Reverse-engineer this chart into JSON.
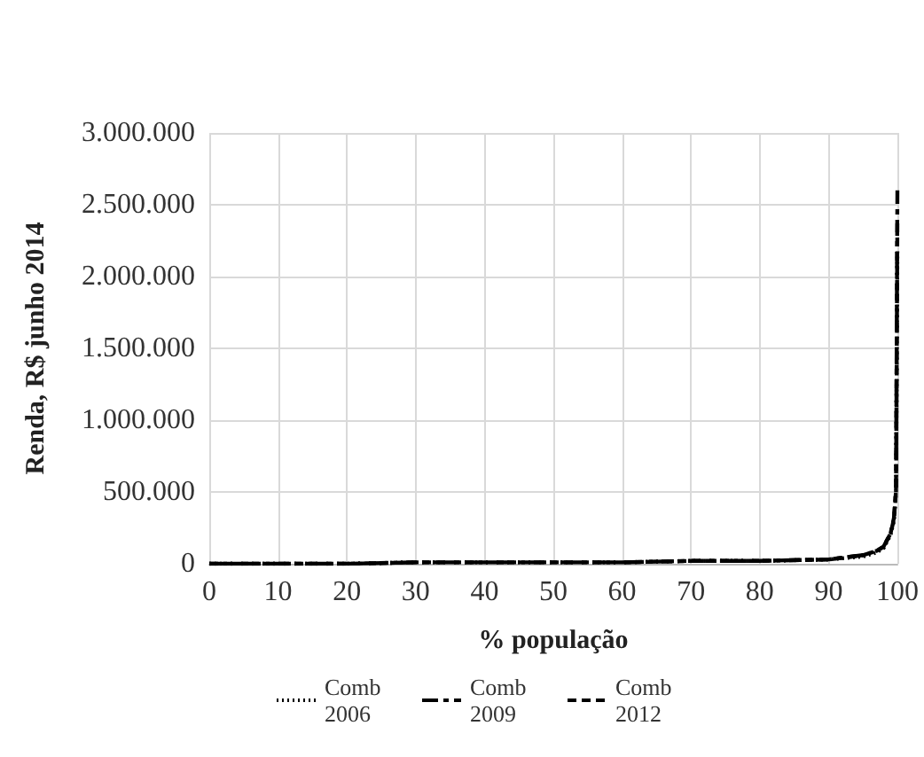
{
  "chart_data": {
    "type": "line",
    "xlabel": "% população",
    "ylabel": "Renda, R$ junho 2014",
    "xlim": [
      0,
      100
    ],
    "xticks": [
      0,
      10,
      20,
      30,
      40,
      50,
      60,
      70,
      80,
      90,
      100
    ],
    "ylim": [
      0,
      3000000
    ],
    "yticks": [
      {
        "value": 0,
        "label": "0"
      },
      {
        "value": 500000,
        "label": "500.000"
      },
      {
        "value": 1000000,
        "label": "1.000.000"
      },
      {
        "value": 1500000,
        "label": "1.500.000"
      },
      {
        "value": 2000000,
        "label": "2.000.000"
      },
      {
        "value": 2500000,
        "label": "2.500.000"
      },
      {
        "value": 3000000,
        "label": "3.000.000"
      }
    ],
    "grid": true,
    "legend": "bottom",
    "marker": "none",
    "series": [
      {
        "name": "Comb 2006",
        "color": "#000000",
        "line_style": "dotted",
        "x": [
          0,
          10,
          20,
          30,
          40,
          50,
          60,
          70,
          80,
          90,
          95,
          97,
          98,
          99,
          99.5,
          99.8,
          100
        ],
        "values": [
          0,
          0,
          0,
          10000,
          10000,
          10000,
          10000,
          20000,
          20000,
          30000,
          50000,
          80000,
          110000,
          200000,
          300000,
          500000,
          2200000
        ]
      },
      {
        "name": "Comb 2009",
        "color": "#000000",
        "line_style": "dashdot",
        "x": [
          0,
          10,
          20,
          30,
          40,
          50,
          60,
          70,
          80,
          90,
          95,
          97,
          98,
          99,
          99.5,
          99.8,
          100
        ],
        "values": [
          0,
          0,
          0,
          10000,
          10000,
          10000,
          10000,
          20000,
          20000,
          30000,
          60000,
          90000,
          120000,
          210000,
          320000,
          520000,
          2600000
        ]
      },
      {
        "name": "Comb 2012",
        "color": "#000000",
        "line_style": "dashed",
        "x": [
          0,
          10,
          20,
          30,
          40,
          50,
          60,
          70,
          80,
          90,
          95,
          97,
          98,
          99,
          99.5,
          99.8,
          100
        ],
        "values": [
          0,
          0,
          0,
          10000,
          10000,
          10000,
          10000,
          20000,
          20000,
          30000,
          60000,
          90000,
          120000,
          210000,
          310000,
          510000,
          2400000
        ]
      }
    ]
  }
}
